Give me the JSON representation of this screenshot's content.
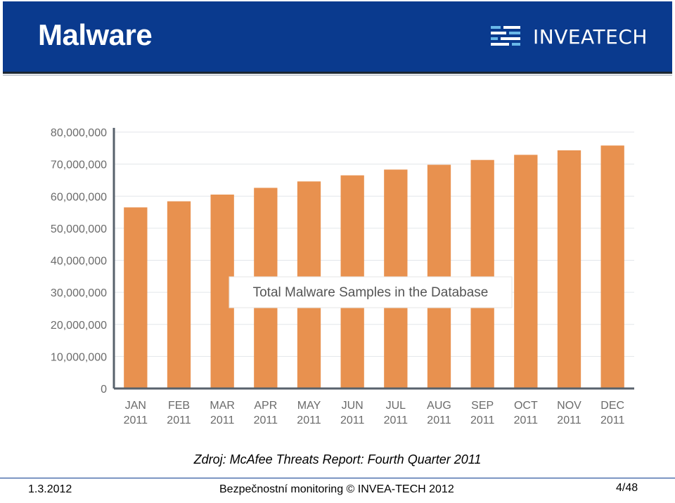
{
  "header": {
    "title": "Malware",
    "logo_text": "INVEATECH"
  },
  "chart_data": {
    "type": "bar",
    "title": "Total Malware Samples in the Database",
    "categories": [
      "JAN 2011",
      "FEB 2011",
      "MAR 2011",
      "APR 2011",
      "MAY 2011",
      "JUN 2011",
      "JUL 2011",
      "AUG 2011",
      "SEP 2011",
      "OCT 2011",
      "NOV 2011",
      "DEC 2011"
    ],
    "category_lines": [
      [
        "JAN",
        "2011"
      ],
      [
        "FEB",
        "2011"
      ],
      [
        "MAR",
        "2011"
      ],
      [
        "APR",
        "2011"
      ],
      [
        "MAY",
        "2011"
      ],
      [
        "JUN",
        "2011"
      ],
      [
        "JUL",
        "2011"
      ],
      [
        "AUG",
        "2011"
      ],
      [
        "SEP",
        "2011"
      ],
      [
        "OCT",
        "2011"
      ],
      [
        "NOV",
        "2011"
      ],
      [
        "DEC",
        "2011"
      ]
    ],
    "values": [
      56500000,
      58400000,
      60500000,
      62600000,
      64600000,
      66500000,
      68300000,
      69800000,
      71300000,
      72900000,
      74300000,
      75800000
    ],
    "ylim": [
      0,
      80000000
    ],
    "yticks": [
      0,
      10000000,
      20000000,
      30000000,
      40000000,
      50000000,
      60000000,
      70000000,
      80000000
    ],
    "ytick_labels": [
      "0",
      "10,000,000",
      "20,000,000",
      "30,000,000",
      "40,000,000",
      "50,000,000",
      "60,000,000",
      "70,000,000",
      "80,000,000"
    ],
    "xlabel": "",
    "ylabel": "",
    "grid": true,
    "bar_color": "#e8914f"
  },
  "caption": "Zdroj: McAfee Threats Report: Fourth Quarter 2011",
  "footer": {
    "date": "1.3.2012",
    "center": "Bezpečnostní monitoring © INVEA-TECH 2012",
    "page": "4/48"
  }
}
